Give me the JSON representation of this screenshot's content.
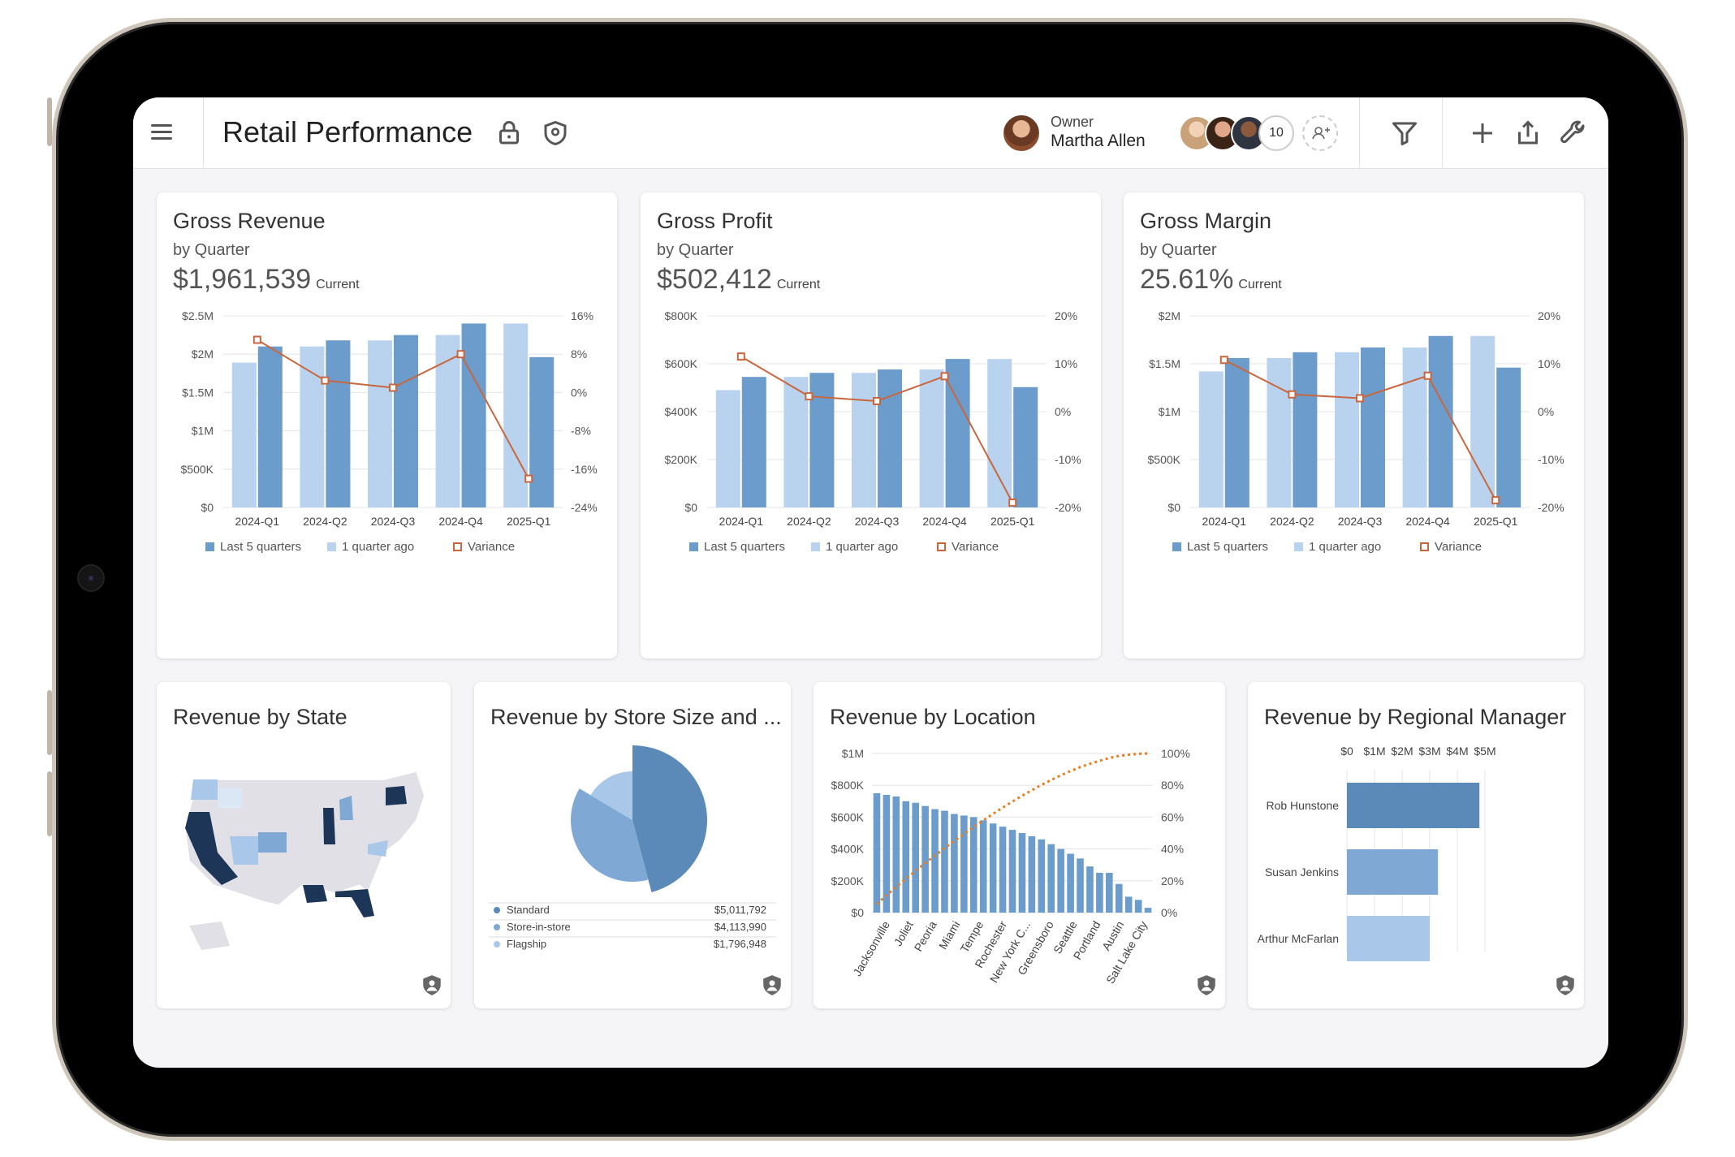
{
  "app": {
    "title": "Retail Performance",
    "owner_label": "Owner",
    "owner_name": "Martha Allen",
    "collaborator_count": "10"
  },
  "icons": [
    "menu-icon",
    "lock-icon",
    "shield-icon",
    "add-user-icon",
    "filter-icon",
    "plus-icon",
    "share-icon",
    "wrench-icon"
  ],
  "colors": {
    "dark_bar": "#6c9ccb",
    "light_bar": "#b9d3ef",
    "variance": "#c9663d",
    "accent": "#5b89b8",
    "navy": "#1d3557"
  },
  "cards": {
    "revenue": {
      "title": "Gross Revenue",
      "subtitle": "by Quarter",
      "value": "$1,961,539",
      "current": "Current"
    },
    "profit": {
      "title": "Gross Profit",
      "subtitle": "by Quarter",
      "value": "$502,412",
      "current": "Current"
    },
    "margin": {
      "title": "Gross Margin",
      "subtitle": "by Quarter",
      "value": "25.61%",
      "current": "Current"
    },
    "state": {
      "title": "Revenue by State"
    },
    "store": {
      "title": "Revenue by Store Size and ..."
    },
    "location": {
      "title": "Revenue by Location"
    },
    "manager": {
      "title": "Revenue by Regional Manager"
    }
  },
  "chart_data": [
    {
      "type": "bar",
      "title": "Gross Revenue",
      "categories": [
        "2024-Q1",
        "2024-Q2",
        "2024-Q3",
        "2024-Q4",
        "2025-Q1"
      ],
      "series": [
        {
          "name": "Last 5 quarters",
          "values": [
            2100000,
            2180000,
            2250000,
            2400000,
            1961539
          ]
        },
        {
          "name": "1 quarter ago",
          "values": [
            1890000,
            2100000,
            2180000,
            2250000,
            2400000
          ]
        },
        {
          "name": "Variance",
          "values": [
            11,
            2.5,
            1,
            8,
            -18
          ]
        }
      ],
      "left_ticks": [
        "$0",
        "$500K",
        "$1M",
        "$1.5M",
        "$2M",
        "$2.5M"
      ],
      "right_ticks": [
        "-24%",
        "-16%",
        "-8%",
        "0%",
        "8%",
        "16%"
      ],
      "ylim": [
        0,
        2500000
      ],
      "y2lim": [
        -24,
        16
      ],
      "legend": "bottom"
    },
    {
      "type": "bar",
      "title": "Gross Profit",
      "categories": [
        "2024-Q1",
        "2024-Q2",
        "2024-Q3",
        "2024-Q4",
        "2025-Q1"
      ],
      "series": [
        {
          "name": "Last 5 quarters",
          "values": [
            545000,
            562000,
            576000,
            620000,
            502412
          ]
        },
        {
          "name": "1 quarter ago",
          "values": [
            490000,
            545000,
            562000,
            576000,
            620000
          ]
        },
        {
          "name": "Variance",
          "values": [
            11.5,
            3.2,
            2.2,
            7.4,
            -19
          ]
        }
      ],
      "left_ticks": [
        "$0",
        "$200K",
        "$400K",
        "$600K",
        "$800K"
      ],
      "right_ticks": [
        "-20%",
        "-10%",
        "0%",
        "10%",
        "20%"
      ],
      "ylim": [
        0,
        800000
      ],
      "y2lim": [
        -20,
        20
      ],
      "legend": "bottom"
    },
    {
      "type": "bar",
      "title": "Gross Margin",
      "categories": [
        "2024-Q1",
        "2024-Q2",
        "2024-Q3",
        "2024-Q4",
        "2025-Q1"
      ],
      "series": [
        {
          "name": "Last 5 quarters",
          "values": [
            1560000,
            1620000,
            1670000,
            1790000,
            1460000
          ]
        },
        {
          "name": "1 quarter ago",
          "values": [
            1420000,
            1560000,
            1620000,
            1670000,
            1790000
          ]
        },
        {
          "name": "Variance",
          "values": [
            10.8,
            3.6,
            2.8,
            7.5,
            -18.5
          ]
        }
      ],
      "left_ticks": [
        "$0",
        "$500K",
        "$1M",
        "$1.5M",
        "$2M"
      ],
      "right_ticks": [
        "-20%",
        "-10%",
        "0%",
        "10%",
        "20%"
      ],
      "ylim": [
        0,
        2000000
      ],
      "y2lim": [
        -20,
        20
      ],
      "legend": "bottom"
    },
    {
      "type": "pie",
      "title": "Revenue by Store Size and ...",
      "slices": [
        {
          "name": "Standard",
          "value": 5011792,
          "label": "$5,011,792",
          "color": "#5b89b8"
        },
        {
          "name": "Store-in-store",
          "value": 4113990,
          "label": "$4,113,990",
          "color": "#7fa9d4"
        },
        {
          "name": "Flagship",
          "value": 1796948,
          "label": "$1,796,948",
          "color": "#a9c7e8"
        }
      ]
    },
    {
      "type": "bar",
      "title": "Revenue by Location",
      "categories": [
        "Jacksonville",
        "Joliet",
        "Peoria",
        "Miami",
        "Tempe",
        "Rochester",
        "New York C...",
        "Greensboro",
        "Seattle",
        "Portland",
        "Austin",
        "Salt Lake City"
      ],
      "bar_values": [
        750000,
        740000,
        730000,
        700000,
        690000,
        670000,
        650000,
        640000,
        620000,
        610000,
        600000,
        580000,
        560000,
        540000,
        520000,
        500000,
        480000,
        460000,
        430000,
        400000,
        370000,
        340000,
        290000,
        250000,
        250000,
        180000,
        100000,
        80000,
        30000
      ],
      "left_ticks": [
        "$0",
        "$200K",
        "$400K",
        "$600K",
        "$800K",
        "$1M"
      ],
      "right_ticks": [
        "0%",
        "20%",
        "40%",
        "60%",
        "80%",
        "100%"
      ],
      "ylim": [
        0,
        1000000
      ],
      "y2lim": [
        0,
        100
      ]
    },
    {
      "type": "bar",
      "orientation": "horizontal",
      "title": "Revenue by Regional Manager",
      "categories": [
        "Rob Hunstone",
        "Susan Jenkins",
        "Arthur McFarlan"
      ],
      "values": [
        4800000,
        3300000,
        3000000
      ],
      "x_ticks": [
        "$0",
        "$1M",
        "$2M",
        "$3M",
        "$4M",
        "$5M"
      ],
      "xlim": [
        0,
        5000000
      ]
    }
  ]
}
